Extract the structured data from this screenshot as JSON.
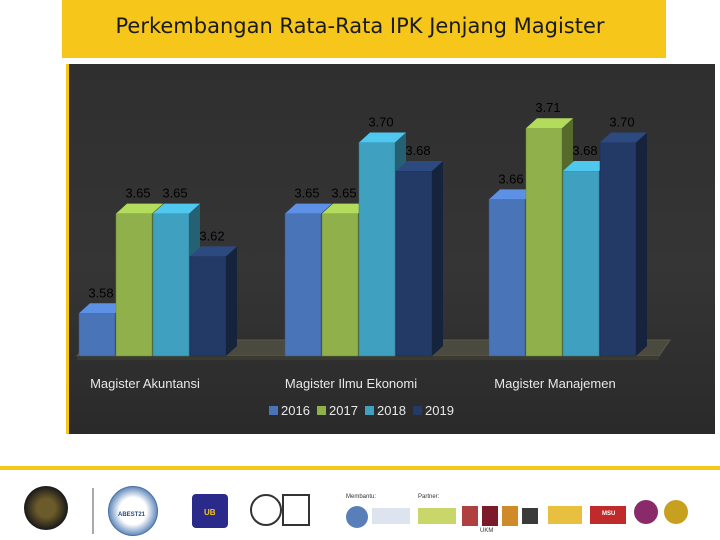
{
  "slide": {
    "title": "Perkembangan Rata-Rata IPK Jenjang Magister"
  },
  "footer": {
    "accreditation_label": "Membantu:",
    "partner_label": "Partner:",
    "logo_texts": [
      "ABEST21",
      "UB",
      "UKM",
      "MSU"
    ]
  },
  "colors": {
    "2016": "#4a74b8",
    "2017": "#8fb04a",
    "2018": "#3fa0c0",
    "2019": "#233a66",
    "accent": "#f7c61a"
  },
  "chart_data": {
    "type": "bar",
    "categories": [
      "Magister Akuntansi",
      "Magister Ilmu Ekonomi",
      "Magister Manajemen"
    ],
    "series": [
      {
        "name": "2016",
        "values": [
          3.58,
          3.65,
          3.66
        ]
      },
      {
        "name": "2017",
        "values": [
          3.65,
          3.65,
          3.71
        ]
      },
      {
        "name": "2018",
        "values": [
          3.65,
          3.7,
          3.68
        ]
      },
      {
        "name": "2019",
        "values": [
          3.62,
          3.68,
          3.7
        ]
      }
    ],
    "data_labels": [
      [
        "3.58",
        "3.65",
        "3.65",
        "3.62"
      ],
      [
        "3.65",
        "3.65",
        "3.70",
        "3.68"
      ],
      [
        "3.66",
        "3.71",
        "3.68",
        "3.70"
      ]
    ],
    "ylim": [
      3.55,
      3.72
    ],
    "legend_position": "bottom",
    "three_d": true
  }
}
